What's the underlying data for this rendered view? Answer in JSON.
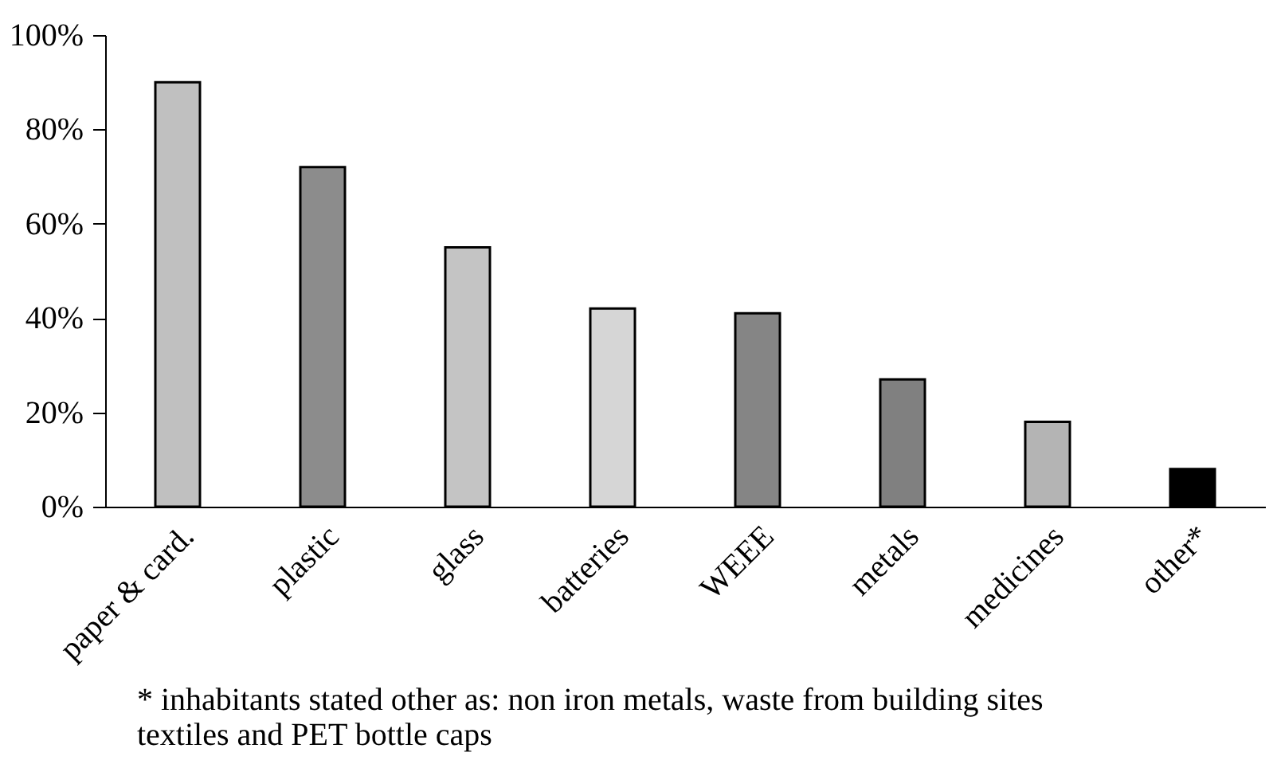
{
  "chart_data": {
    "type": "bar",
    "categories": [
      "paper & card.",
      "plastic",
      "glass",
      "batteries",
      "WEEE",
      "metals",
      "medicines",
      "other*"
    ],
    "values": [
      90,
      72,
      55,
      42,
      41,
      27,
      18,
      8
    ],
    "colors": [
      "#c0c0c0",
      "#8c8c8c",
      "#c4c4c4",
      "#d6d6d6",
      "#858585",
      "#808080",
      "#b4b4b4",
      "#000000"
    ],
    "ylim": [
      0,
      100
    ],
    "yticks": [
      {
        "value": 0,
        "label": "0%"
      },
      {
        "value": 20,
        "label": "20%"
      },
      {
        "value": 40,
        "label": "40%"
      },
      {
        "value": 60,
        "label": "60%"
      },
      {
        "value": 80,
        "label": "80%"
      },
      {
        "value": 100,
        "label": "100%"
      }
    ],
    "grid": false,
    "annotations": [
      "* inhabitants stated other as: non iron metals, waste from building sites\ntextiles and PET bottle caps"
    ]
  }
}
